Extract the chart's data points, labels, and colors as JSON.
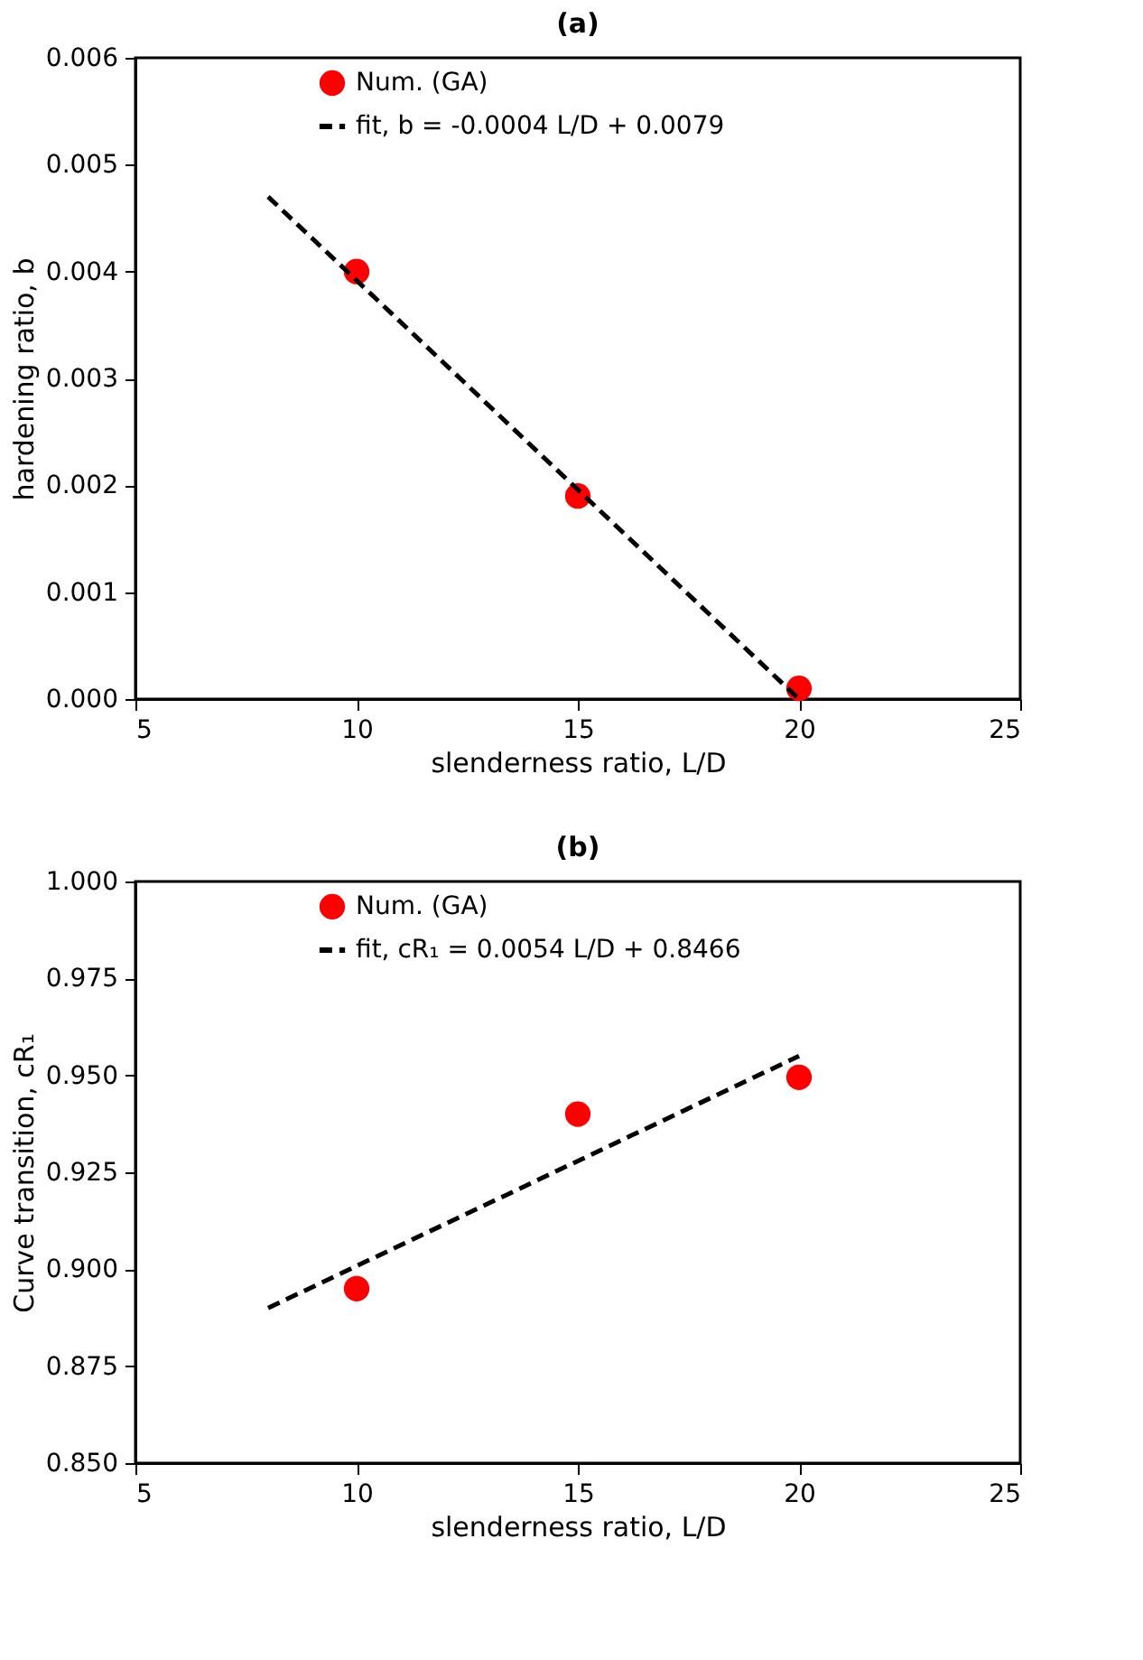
{
  "chart_data": [
    {
      "type": "scatter",
      "title": "(a)",
      "xlabel": "slenderness ratio, L/D",
      "ylabel": "hardening ratio, b",
      "xlim": [
        5,
        25
      ],
      "xticks": [
        5,
        10,
        15,
        20,
        25
      ],
      "ylim": [
        0,
        0.006
      ],
      "yticks": [
        {
          "value": 0,
          "label": "0.000"
        },
        {
          "value": 0.001,
          "label": "0.001"
        },
        {
          "value": 0.002,
          "label": "0.002"
        },
        {
          "value": 0.003,
          "label": "0.003"
        },
        {
          "value": 0.004,
          "label": "0.004"
        },
        {
          "value": 0.005,
          "label": "0.005"
        },
        {
          "value": 0.006,
          "label": "0.006"
        }
      ],
      "grid": false,
      "legend": "top",
      "series": [
        {
          "name": "Num. (GA)",
          "type": "scatter",
          "marker": "circle",
          "color": "#ff0000",
          "x": [
            10,
            15,
            20
          ],
          "values": [
            0.004,
            0.0019,
            0.0001
          ]
        },
        {
          "name": "fit, b = -0.0004 L/D  + 0.0079",
          "type": "line",
          "line_style": "dashed",
          "color": "#000000",
          "x": [
            8,
            20
          ],
          "values": [
            0.0047,
            0.0
          ]
        }
      ]
    },
    {
      "type": "scatter",
      "title": "(b)",
      "xlabel": "slenderness ratio, L/D",
      "ylabel": "Curve transition, cR₁",
      "xlim": [
        5,
        25
      ],
      "xticks": [
        5,
        10,
        15,
        20,
        25
      ],
      "ylim": [
        0.85,
        1.0
      ],
      "yticks": [
        {
          "value": 0.85,
          "label": "0.850"
        },
        {
          "value": 0.875,
          "label": "0.875"
        },
        {
          "value": 0.9,
          "label": "0.900"
        },
        {
          "value": 0.925,
          "label": "0.925"
        },
        {
          "value": 0.95,
          "label": "0.950"
        },
        {
          "value": 0.975,
          "label": "0.975"
        },
        {
          "value": 1.0,
          "label": "1.000"
        }
      ],
      "grid": false,
      "legend": "top",
      "series": [
        {
          "name": "Num. (GA)",
          "type": "scatter",
          "marker": "circle",
          "color": "#ff0000",
          "x": [
            10,
            15,
            20
          ],
          "values": [
            0.895,
            0.94,
            0.9495
          ]
        },
        {
          "name": "fit, cR₁ = 0.0054 L/D  + 0.8466",
          "type": "line",
          "line_style": "dashed",
          "color": "#000000",
          "x": [
            8,
            20
          ],
          "values": [
            0.89,
            0.955
          ]
        }
      ]
    }
  ]
}
